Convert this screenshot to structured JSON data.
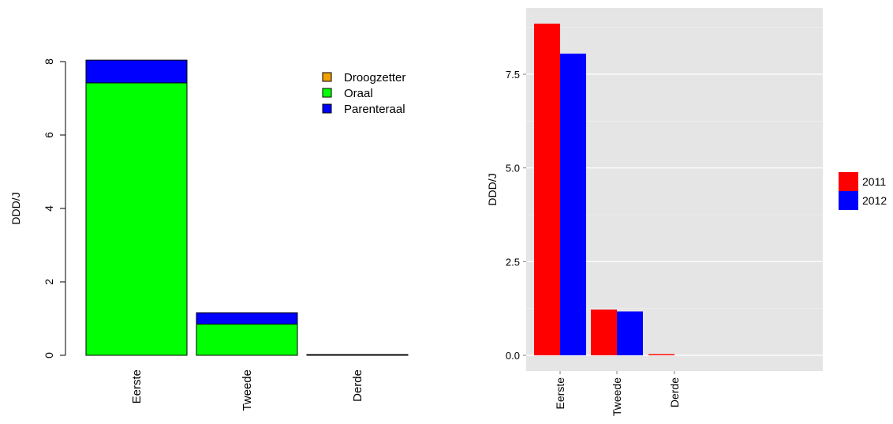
{
  "chart_data": [
    {
      "type": "bar",
      "stacked": true,
      "categories": [
        "Eerste",
        "Tweede",
        "Derde"
      ],
      "series": [
        {
          "name": "Droogzetter",
          "color": "#f0a000",
          "values": [
            0,
            0,
            0
          ]
        },
        {
          "name": "Oraal",
          "color": "#00ff00",
          "values": [
            7.42,
            0.85,
            0.0
          ]
        },
        {
          "name": "Parenteraal",
          "color": "#0000ff",
          "values": [
            0.62,
            0.31,
            0.02
          ]
        }
      ],
      "ylabel": "DDD/J",
      "ylim": [
        0,
        8
      ],
      "yticks": [
        "0",
        "2",
        "4",
        "6",
        "8"
      ],
      "legend": "top-right",
      "grid": false
    },
    {
      "type": "bar",
      "grouped": true,
      "categories": [
        "Eerste",
        "Tweede",
        "Derde"
      ],
      "series": [
        {
          "name": "2011",
          "color": "#ff0000",
          "values": [
            8.85,
            1.22,
            0.03
          ]
        },
        {
          "name": "2012",
          "color": "#0000ff",
          "values": [
            8.05,
            1.17,
            0.0
          ]
        }
      ],
      "ylabel": "DDD/J",
      "ylim": [
        0,
        9.1
      ],
      "yticks": [
        "0.0",
        "2.5",
        "5.0",
        "7.5"
      ],
      "legend": "right",
      "grid": true
    }
  ]
}
